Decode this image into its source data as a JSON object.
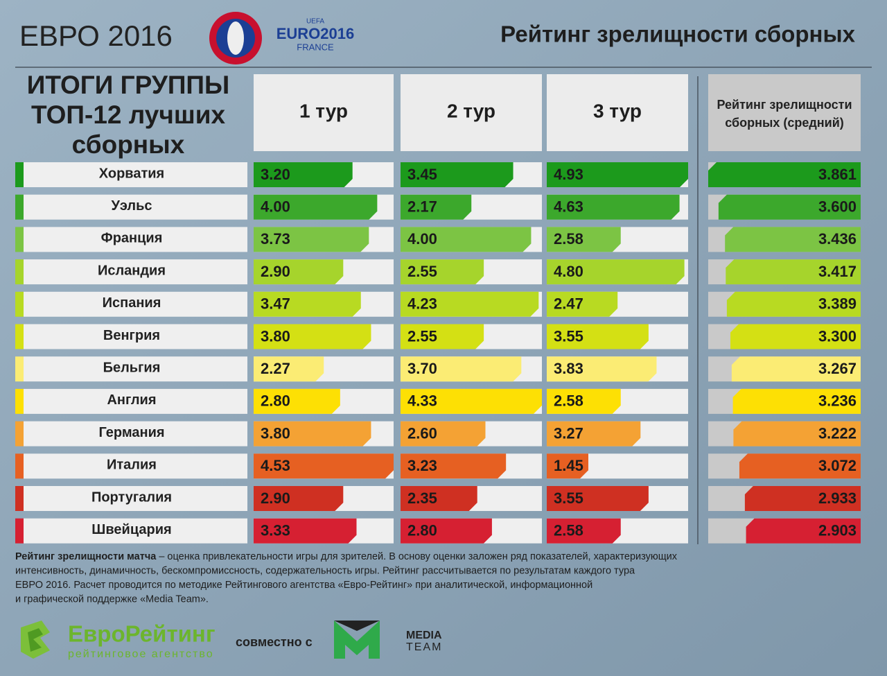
{
  "header": {
    "title_left": "ЕВРО 2016",
    "logo": {
      "uefa": "UEFA",
      "euro": "EURO2016",
      "france": "FRANCE"
    },
    "title": "Рейтинг зрелищности сборных"
  },
  "heading": [
    "ИТОГИ ГРУППЫ",
    "ТОП-12 лучших",
    "сборных"
  ],
  "table": {
    "columns": [
      "1 тур",
      "2 тур",
      "3 тур"
    ],
    "average_header": [
      "Рейтинг зрелищности",
      "сборных (средний)"
    ],
    "rows": [
      {
        "team": "Хорватия",
        "color": "#1c9a1c",
        "values": [
          3.2,
          3.45,
          4.93
        ],
        "value_labels": [
          "3.20",
          "3.45",
          "4.93"
        ],
        "average": 3.861
      },
      {
        "team": "Уэльс",
        "color": "#3ca82c",
        "values": [
          4,
          2.17,
          4.63
        ],
        "value_labels": [
          "4.00",
          "2.17",
          "4.63"
        ],
        "average": 3.6,
        "average_label": "3.600"
      },
      {
        "team": "Франция",
        "color": "#7cc444",
        "values": [
          3.73,
          4,
          2.58
        ],
        "value_labels": [
          "3.73",
          "4.00",
          "2.58"
        ],
        "average": 3.436
      },
      {
        "team": "Исландия",
        "color": "#a6d42c",
        "values": [
          2.9,
          2.55,
          4.8
        ],
        "value_labels": [
          "2.90",
          "2.55",
          "4.80"
        ],
        "average": 3.417
      },
      {
        "team": "Испания",
        "color": "#b8da22",
        "values": [
          3.47,
          4.23,
          2.47
        ],
        "value_labels": [
          "3.47",
          "4.23",
          "2.47"
        ],
        "average": 3.389
      },
      {
        "team": "Венгрия",
        "color": "#d4e014",
        "values": [
          3.8,
          2.55,
          3.55
        ],
        "value_labels": [
          "3.80",
          "2.55",
          "3.55"
        ],
        "average": 3.3,
        "average_label": "3.300"
      },
      {
        "team": "Бельгия",
        "color": "#fbec74",
        "values": [
          2.27,
          3.7,
          3.83
        ],
        "value_labels": [
          "2.27",
          "3.70",
          "3.83"
        ],
        "average": 3.267
      },
      {
        "team": "Англия",
        "color": "#fde004",
        "values": [
          2.8,
          4.33,
          2.58
        ],
        "value_labels": [
          "2.80",
          "4.33",
          "2.58"
        ],
        "average": 3.236
      },
      {
        "team": "Германия",
        "color": "#f4a234",
        "values": [
          3.8,
          2.6,
          3.27
        ],
        "value_labels": [
          "3.80",
          "2.60",
          "3.27"
        ],
        "average": 3.222
      },
      {
        "team": "Италия",
        "color": "#e66022",
        "values": [
          4.53,
          3.23,
          1.45
        ],
        "value_labels": [
          "4.53",
          "3.23",
          "1.45"
        ],
        "average": 3.072
      },
      {
        "team": "Португалия",
        "color": "#cf3022",
        "values": [
          2.9,
          2.35,
          3.55
        ],
        "value_labels": [
          "2.90",
          "2.35",
          "3.55"
        ],
        "average": 2.933
      },
      {
        "team": "Швейцария",
        "color": "#d62032",
        "values": [
          3.33,
          2.8,
          2.58
        ],
        "value_labels": [
          "3.33",
          "2.80",
          "2.58"
        ],
        "average": 2.903
      }
    ]
  },
  "footer": {
    "lead": "Рейтинг зрелищности матча",
    "lines": [
      "– оценка привлекательности игры для зрителей. В основу оценки заложен ряд показателей, характеризующих",
      "интенсивность, динамичность, бескомпромиссность, содержательность игры. Рейтинг рассчитывается по результатам каждого тура",
      "ЕВРО 2016. Расчет проводится по методике Рейтингового агентства «Евро-Рейтинг» при аналитической, информационной",
      "и графической поддержке «Media Team»."
    ]
  },
  "partners": {
    "euro_rating": "ЕвроРейтинг",
    "euro_rating_sub": "рейтинговое агентство",
    "together": "совместно с",
    "media": "MEDIA",
    "team": "TEAM"
  }
}
